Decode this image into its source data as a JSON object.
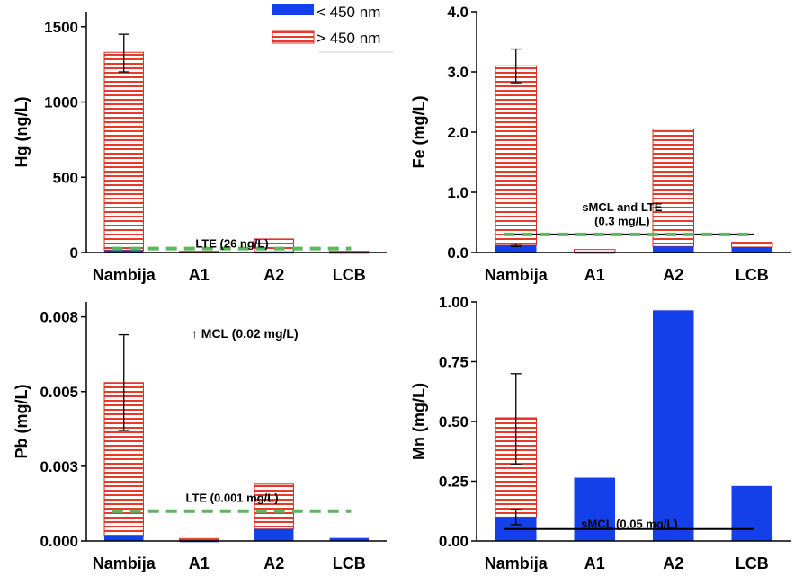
{
  "colors": {
    "lt450": "#1340e8",
    "gt450_stroke": "#e02a1e",
    "gt450_stripe": "#e8392b",
    "axis": "#000000",
    "lte_line": "#5cb85c",
    "threshold_line": "#000000"
  },
  "legend": {
    "lt450": "< 450 nm",
    "gt450": "> 450 nm"
  },
  "chart_data": [
    {
      "id": "hg",
      "type": "bar",
      "stacked": true,
      "ylabel": "Hg (ng/L)",
      "categories": [
        "Nambija",
        "A1",
        "A2",
        "LCB"
      ],
      "ylim": [
        0,
        1600
      ],
      "yticks": [
        0,
        500,
        1000,
        1500
      ],
      "ytick_labels": [
        "0",
        "500",
        "1000",
        "1500"
      ],
      "series": [
        {
          "name": "< 450 nm",
          "values": [
            15,
            0,
            5,
            4
          ]
        },
        {
          "name": "> 450 nm",
          "values": [
            1315,
            8,
            85,
            4
          ]
        }
      ],
      "error": [
        {
          "category": "Nambija",
          "center": 1330,
          "low": 1200,
          "high": 1450
        }
      ],
      "lines": [
        {
          "label": "LTE (26 ng/L)",
          "value": 26,
          "style": "dashed",
          "color": "lte_line",
          "label_at": 62
        }
      ],
      "annotations": []
    },
    {
      "id": "fe",
      "type": "bar",
      "stacked": true,
      "ylabel": "Fe (mg/L)",
      "categories": [
        "Nambija",
        "A1",
        "A2",
        "LCB"
      ],
      "ylim": [
        0,
        4
      ],
      "yticks": [
        0,
        1,
        2,
        3,
        4
      ],
      "ytick_labels": [
        "0.0",
        "1.0",
        "2.0",
        "3.0",
        "4.0"
      ],
      "series": [
        {
          "name": "< 450 nm",
          "values": [
            0.12,
            0.01,
            0.1,
            0.09
          ]
        },
        {
          "name": "> 450 nm",
          "values": [
            2.98,
            0.04,
            1.95,
            0.08
          ]
        }
      ],
      "error": [
        {
          "category": "Nambija",
          "center": 3.1,
          "low": 2.82,
          "high": 3.38
        },
        {
          "category": "Nambija",
          "center": 0.12,
          "low": 0.1,
          "high": 0.14
        }
      ],
      "lines": [
        {
          "label": "",
          "value": 0.3,
          "style": "solid",
          "color": "threshold_line"
        },
        {
          "label": "",
          "value": 0.3,
          "style": "dashed",
          "color": "lte_line"
        }
      ],
      "annotations": [
        {
          "text": "sMCL and LTE",
          "cat": 1.35,
          "value": 0.76
        },
        {
          "text": "(0.3 mg/L)",
          "cat": 1.35,
          "value": 0.53
        }
      ]
    },
    {
      "id": "pb",
      "type": "bar",
      "stacked": true,
      "ylabel": "Pb (mg/L)",
      "categories": [
        "Nambija",
        "A1",
        "A2",
        "LCB"
      ],
      "ylim": [
        0,
        0.008
      ],
      "yticks": [
        0,
        0.0025,
        0.005,
        0.0075
      ],
      "ytick_labels": [
        "0.000",
        "0.003",
        "0.005",
        "0.008"
      ],
      "series": [
        {
          "name": "< 450 nm",
          "values": [
            0.00015,
            2e-05,
            0.0004,
            0.0001
          ]
        },
        {
          "name": "> 450 nm",
          "values": [
            0.00515,
            6e-05,
            0.0015,
            0
          ]
        }
      ],
      "error": [
        {
          "category": "Nambija",
          "center": 0.0053,
          "low": 0.0037,
          "high": 0.0069
        }
      ],
      "lines": [
        {
          "label": "LTE (0.001 mg/L)",
          "value": 0.001,
          "style": "dashed",
          "color": "lte_line",
          "label_at": 0.00146
        }
      ],
      "annotations": [
        {
          "text": "↑ MCL (0.02 mg/L)",
          "cat": 0.9,
          "value": 0.00695,
          "anchor": "start",
          "size": 14
        }
      ]
    },
    {
      "id": "mn",
      "type": "bar",
      "stacked": true,
      "ylabel": "Mn (mg/L)",
      "categories": [
        "Nambija",
        "A1",
        "A2",
        "LCB"
      ],
      "ylim": [
        0,
        1
      ],
      "yticks": [
        0,
        0.25,
        0.5,
        0.75,
        1
      ],
      "ytick_labels": [
        "0.00",
        "0.25",
        "0.50",
        "0.75",
        "1.00"
      ],
      "series": [
        {
          "name": "< 450 nm",
          "values": [
            0.1,
            0.265,
            0.965,
            0.23
          ]
        },
        {
          "name": "> 450 nm",
          "values": [
            0.415,
            0,
            0,
            0
          ]
        }
      ],
      "error": [
        {
          "category": "Nambija",
          "center": 0.515,
          "low": 0.32,
          "high": 0.7
        },
        {
          "category": "Nambija",
          "center": 0.1,
          "low": 0.068,
          "high": 0.132
        }
      ],
      "lines": [
        {
          "label": "sMCL (0.05 mg/L)",
          "value": 0.05,
          "style": "solid",
          "color": "threshold_line",
          "label_at": 0.074
        }
      ],
      "annotations": []
    }
  ]
}
